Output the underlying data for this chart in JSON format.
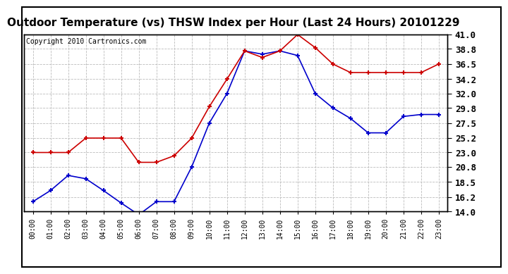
{
  "title": "Outdoor Temperature (vs) THSW Index per Hour (Last 24 Hours) 20101229",
  "copyright": "Copyright 2010 Cartronics.com",
  "hours": [
    "00:00",
    "01:00",
    "02:00",
    "03:00",
    "04:00",
    "05:00",
    "06:00",
    "07:00",
    "08:00",
    "09:00",
    "10:00",
    "11:00",
    "12:00",
    "13:00",
    "14:00",
    "15:00",
    "16:00",
    "17:00",
    "18:00",
    "19:00",
    "20:00",
    "21:00",
    "22:00",
    "23:00"
  ],
  "temp_blue": [
    15.5,
    17.2,
    19.5,
    19.0,
    17.2,
    15.3,
    13.5,
    15.5,
    15.5,
    20.8,
    27.5,
    32.0,
    38.5,
    38.0,
    38.5,
    37.8,
    32.0,
    29.8,
    28.2,
    26.0,
    26.0,
    28.5,
    28.8,
    28.8
  ],
  "thsw_red": [
    23.0,
    23.0,
    23.0,
    25.2,
    25.2,
    25.2,
    21.5,
    21.5,
    22.5,
    25.2,
    30.0,
    34.2,
    38.5,
    37.5,
    38.5,
    41.0,
    39.0,
    36.5,
    35.2,
    35.2,
    35.2,
    35.2,
    35.2,
    36.5
  ],
  "blue_color": "#0000cc",
  "red_color": "#cc0000",
  "bg_color": "#ffffff",
  "grid_color": "#bbbbbb",
  "ylim": [
    14.0,
    41.0
  ],
  "yticks": [
    14.0,
    16.2,
    18.5,
    20.8,
    23.0,
    25.2,
    27.5,
    29.8,
    32.0,
    34.2,
    36.5,
    38.8,
    41.0
  ],
  "title_fontsize": 11,
  "copyright_fontsize": 7,
  "marker": "+",
  "marker_size": 5,
  "marker_edge_width": 1.5,
  "line_width": 1.2,
  "ytick_fontsize": 9,
  "xtick_fontsize": 7
}
